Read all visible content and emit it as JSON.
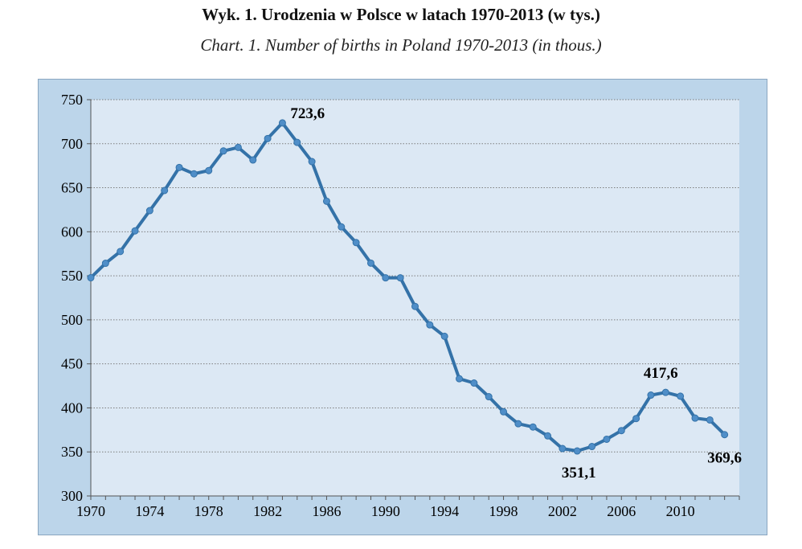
{
  "header": {
    "title": "Wyk.  1. Urodzenia w Polsce w latach 1970-2013 (w tys.)",
    "subtitle": "Chart. 1. Number of births in Poland 1970-2013 (in thous.)"
  },
  "colors": {
    "line": "#3472a8",
    "plot_background": "#dce8f4",
    "chart_background": "#bcd5ea",
    "gridline": "#7d7d7d"
  },
  "chart_data": {
    "type": "line",
    "title": "Wyk.  1. Urodzenia w Polsce w latach 1970-2013 (w tys.)",
    "subtitle": "Chart. 1. Number of births in Poland 1970-2013 (in thous.)",
    "xlabel": "",
    "ylabel": "",
    "x": [
      1970,
      1971,
      1972,
      1973,
      1974,
      1975,
      1976,
      1977,
      1978,
      1979,
      1980,
      1981,
      1982,
      1983,
      1984,
      1985,
      1986,
      1987,
      1988,
      1989,
      1990,
      1991,
      1992,
      1993,
      1994,
      1995,
      1996,
      1997,
      1998,
      1999,
      2000,
      2001,
      2002,
      2003,
      2004,
      2005,
      2006,
      2007,
      2008,
      2009,
      2010,
      2011,
      2012,
      2013
    ],
    "series": [
      {
        "values": [
          547.8,
          564.2,
          577.6,
          601.0,
          624.0,
          646.9,
          673.0,
          665.8,
          669.5,
          691.8,
          695.8,
          681.5,
          705.9,
          723.6,
          701.5,
          679.7,
          634.7,
          605.5,
          587.7,
          564.4,
          547.7,
          547.7,
          515.2,
          494.3,
          481.3,
          433.1,
          428.2,
          412.7,
          395.6,
          382.0,
          378.3,
          368.2,
          353.8,
          351.1,
          356.1,
          364.4,
          374.2,
          387.9,
          414.5,
          417.6,
          413.3,
          388.4,
          386.3,
          369.6
        ]
      }
    ],
    "xlim": [
      1970,
      2014
    ],
    "ylim": [
      300,
      750
    ],
    "x_ticks": [
      1970,
      1974,
      1978,
      1982,
      1986,
      1990,
      1994,
      1998,
      2002,
      2006,
      2010
    ],
    "y_ticks": [
      300,
      350,
      400,
      450,
      500,
      550,
      600,
      650,
      700,
      750
    ],
    "grid": "horizontal dotted",
    "legend": "none",
    "annotations": [
      {
        "x": 1983,
        "y": 723.6,
        "text": "723,6"
      },
      {
        "x": 2003,
        "y": 351.1,
        "text": "351,1"
      },
      {
        "x": 2009,
        "y": 417.6,
        "text": "417,6"
      },
      {
        "x": 2013,
        "y": 369.6,
        "text": "369,6"
      }
    ]
  }
}
